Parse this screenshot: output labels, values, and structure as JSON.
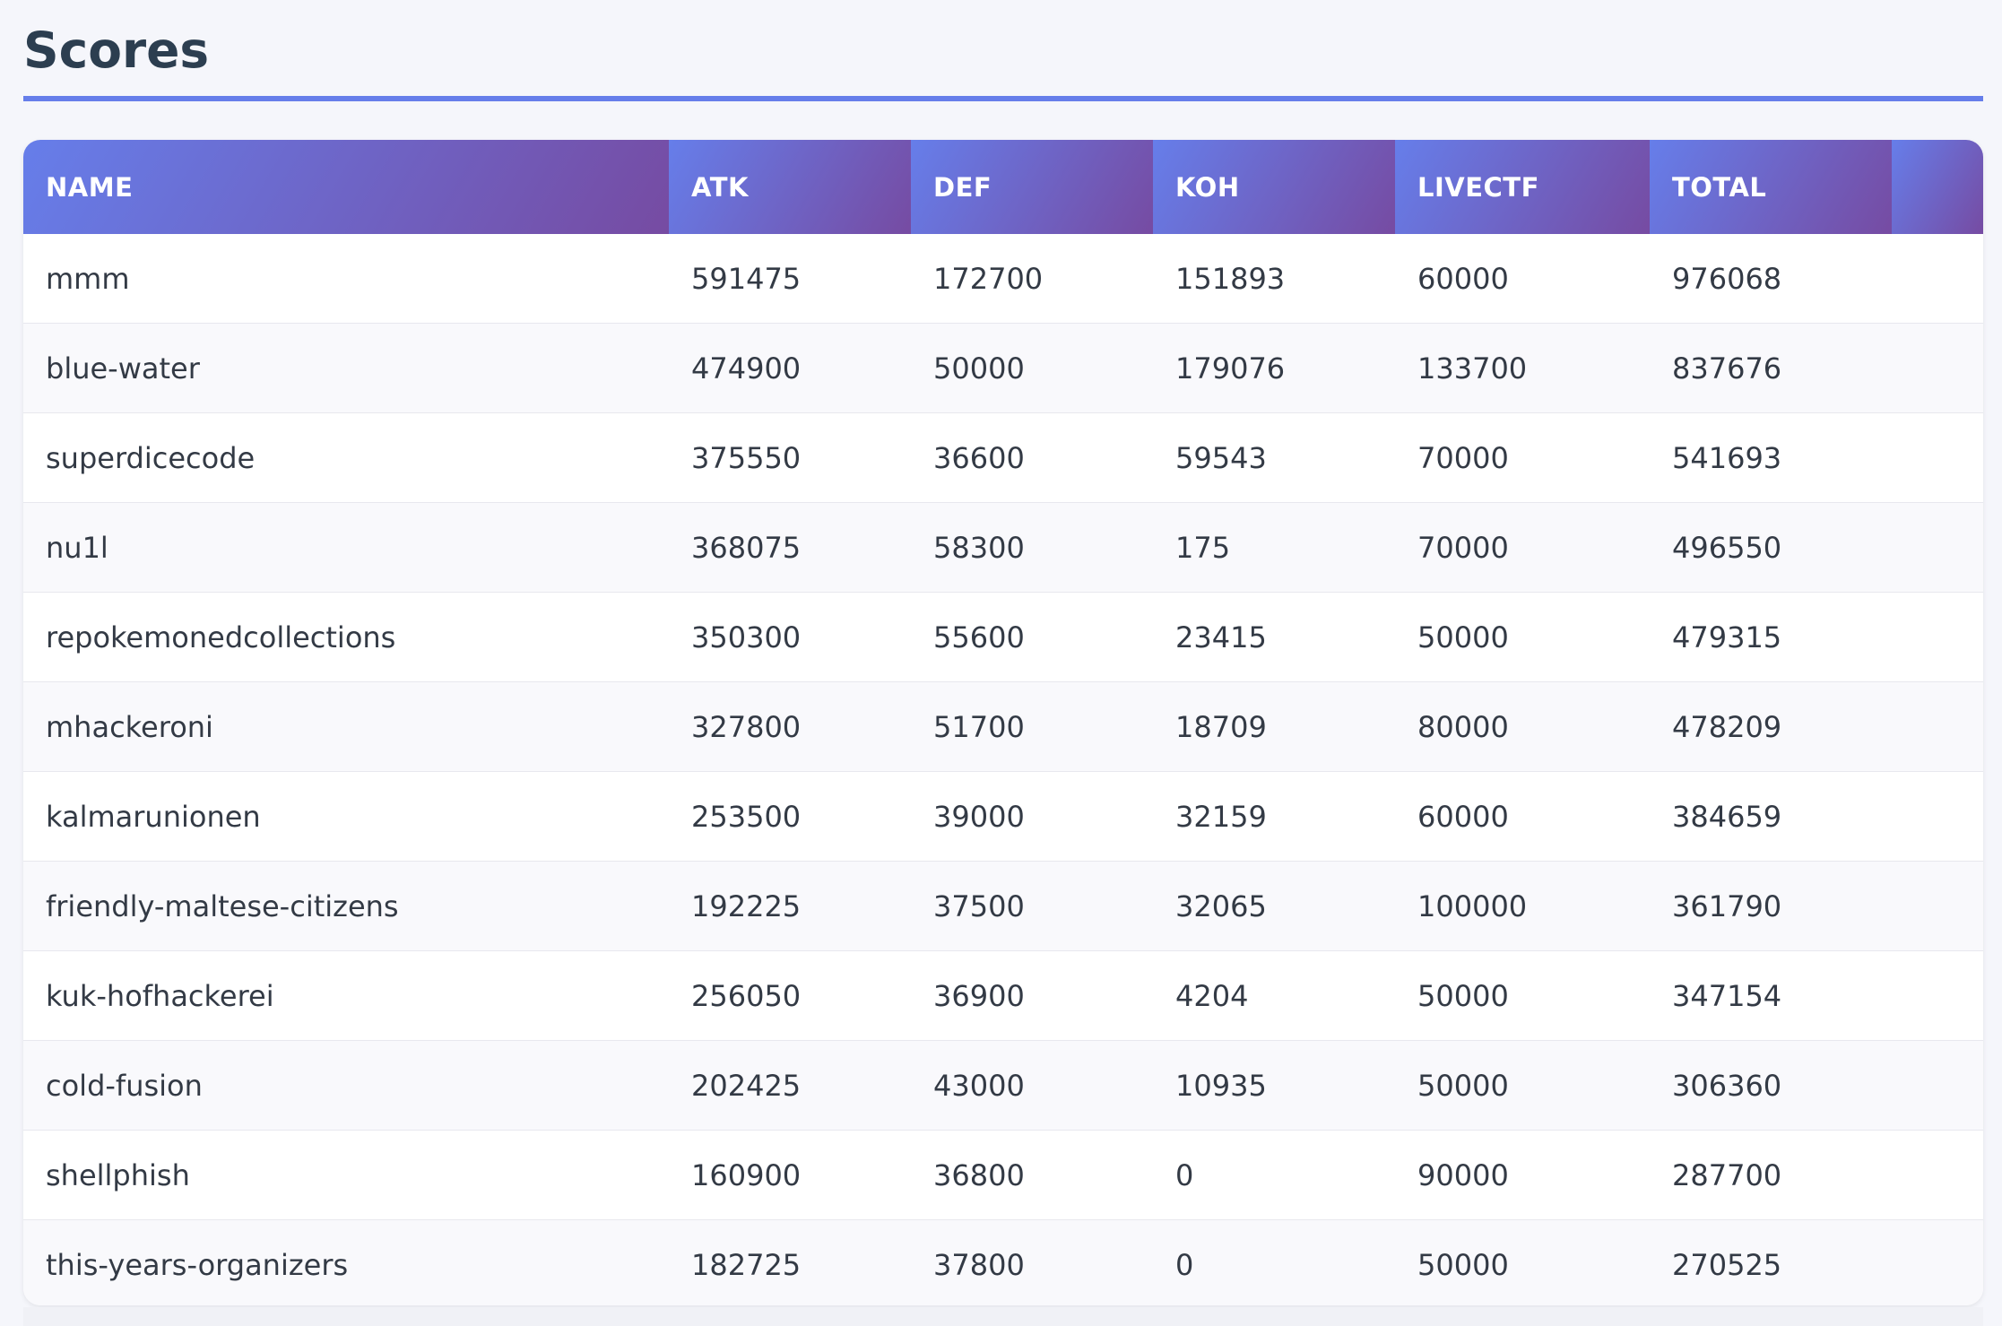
{
  "page": {
    "title": "Scores"
  },
  "table": {
    "columns": [
      "NAME",
      "ATK",
      "DEF",
      "KOH",
      "LIVECTF",
      "TOTAL",
      ""
    ],
    "rows": [
      [
        "mmm",
        "591475",
        "172700",
        "151893",
        "60000",
        "976068"
      ],
      [
        "blue-water",
        "474900",
        "50000",
        "179076",
        "133700",
        "837676"
      ],
      [
        "superdicecode",
        "375550",
        "36600",
        "59543",
        "70000",
        "541693"
      ],
      [
        "nu1l",
        "368075",
        "58300",
        "175",
        "70000",
        "496550"
      ],
      [
        "repokemonedcollections",
        "350300",
        "55600",
        "23415",
        "50000",
        "479315"
      ],
      [
        "mhackeroni",
        "327800",
        "51700",
        "18709",
        "80000",
        "478209"
      ],
      [
        "kalmarunionen",
        "253500",
        "39000",
        "32159",
        "60000",
        "384659"
      ],
      [
        "friendly-maltese-citizens",
        "192225",
        "37500",
        "32065",
        "100000",
        "361790"
      ],
      [
        "kuk-hofhackerei",
        "256050",
        "36900",
        "4204",
        "50000",
        "347154"
      ],
      [
        "cold-fusion",
        "202425",
        "43000",
        "10935",
        "50000",
        "306360"
      ],
      [
        "shellphish",
        "160900",
        "36800",
        "0",
        "90000",
        "287700"
      ],
      [
        "this-years-organizers",
        "182725",
        "37800",
        "0",
        "50000",
        "270525"
      ]
    ]
  },
  "colors": {
    "accent": "#667eea",
    "header_gradient_start": "#667eea",
    "header_gradient_end": "#764ba2",
    "title": "#2c3e50"
  }
}
